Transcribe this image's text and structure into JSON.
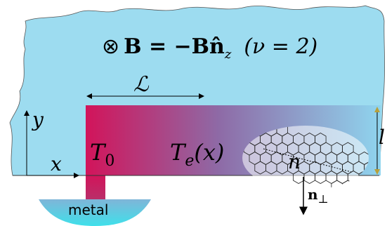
{
  "equation": {
    "prefix": "⊗",
    "main": "B = −B",
    "unit_vector": "n̂",
    "sub": "z",
    "filling": "(ν = 2)"
  },
  "labels": {
    "length": "ℒ",
    "y_axis": "y",
    "x_axis": "x",
    "t0": {
      "main": "T",
      "sub": "0"
    },
    "te": {
      "main": "T",
      "sub": "e",
      "arg": "(x)"
    },
    "width": "l",
    "normal": "n",
    "normal_perp": {
      "main": "n",
      "sub": "⊥"
    },
    "metal": "metal"
  }
}
